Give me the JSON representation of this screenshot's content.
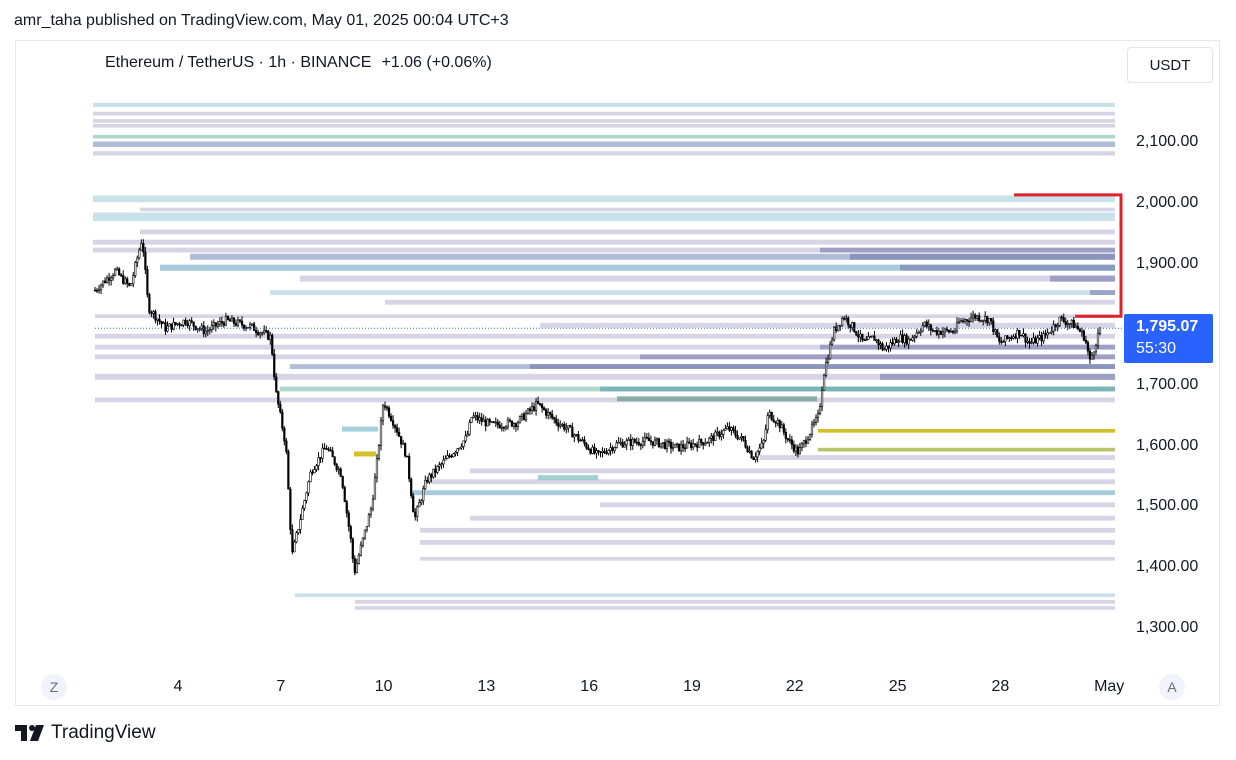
{
  "header": {
    "published": "amr_taha published on TradingView.com, May 01, 2025 00:04 UTC+3",
    "symbol": "Ethereum / TetherUS · 1h · BINANCE",
    "change": "+1.06 (+0.06%)"
  },
  "currency_button": "USDT",
  "price_label": {
    "price": "1,795.07",
    "countdown": "55:30"
  },
  "left_button": "Z",
  "right_button": "A",
  "footer": {
    "brand": "TradingView"
  },
  "colors": {
    "candle": "#000000",
    "current_price_box": "#2962ff",
    "annotation_red": "#e0202a",
    "zone_yellow": "#d4c02a",
    "zone_olive": "#b9c46a",
    "zone_blue": "#4d88b8",
    "zone_lavender": "#8f8db8",
    "zone_teal": "#6fb6a6"
  },
  "icons": {
    "footer_logo": "tradingview-logo-icon"
  },
  "chart_data": {
    "type": "candlestick",
    "title": "Ethereum / TetherUS · 1h · BINANCE",
    "ylim": [
      1280,
      2180
    ],
    "y_ticks": [
      "2,100.00",
      "2,000.00",
      "1,900.00",
      "1,700.00",
      "1,600.00",
      "1,500.00",
      "1,400.00",
      "1,300.00"
    ],
    "x_tick_labels": [
      "4",
      "7",
      "10",
      "13",
      "16",
      "19",
      "22",
      "25",
      "28",
      "May"
    ],
    "current_price": 1795.07,
    "close_path": [
      [
        0,
        1858
      ],
      [
        0.02,
        1890
      ],
      [
        0.035,
        1862
      ],
      [
        0.047,
        1945
      ],
      [
        0.053,
        1830
      ],
      [
        0.07,
        1795
      ],
      [
        0.09,
        1808
      ],
      [
        0.11,
        1790
      ],
      [
        0.13,
        1808
      ],
      [
        0.155,
        1798
      ],
      [
        0.175,
        1780
      ],
      [
        0.18,
        1690
      ],
      [
        0.19,
        1600
      ],
      [
        0.196,
        1420
      ],
      [
        0.215,
        1560
      ],
      [
        0.23,
        1600
      ],
      [
        0.245,
        1555
      ],
      [
        0.255,
        1440
      ],
      [
        0.258,
        1392
      ],
      [
        0.275,
        1500
      ],
      [
        0.28,
        1565
      ],
      [
        0.287,
        1675
      ],
      [
        0.3,
        1630
      ],
      [
        0.31,
        1585
      ],
      [
        0.318,
        1480
      ],
      [
        0.33,
        1545
      ],
      [
        0.35,
        1580
      ],
      [
        0.37,
        1615
      ],
      [
        0.375,
        1650
      ],
      [
        0.395,
        1635
      ],
      [
        0.42,
        1640
      ],
      [
        0.44,
        1670
      ],
      [
        0.46,
        1640
      ],
      [
        0.47,
        1630
      ],
      [
        0.49,
        1600
      ],
      [
        0.5,
        1585
      ],
      [
        0.52,
        1605
      ],
      [
        0.55,
        1610
      ],
      [
        0.58,
        1598
      ],
      [
        0.61,
        1610
      ],
      [
        0.63,
        1630
      ],
      [
        0.645,
        1610
      ],
      [
        0.655,
        1582
      ],
      [
        0.665,
        1605
      ],
      [
        0.67,
        1655
      ],
      [
        0.68,
        1640
      ],
      [
        0.69,
        1610
      ],
      [
        0.7,
        1590
      ],
      [
        0.71,
        1620
      ],
      [
        0.72,
        1650
      ],
      [
        0.725,
        1720
      ],
      [
        0.735,
        1790
      ],
      [
        0.745,
        1815
      ],
      [
        0.755,
        1795
      ],
      [
        0.765,
        1770
      ],
      [
        0.775,
        1780
      ],
      [
        0.785,
        1760
      ],
      [
        0.8,
        1780
      ],
      [
        0.81,
        1775
      ],
      [
        0.825,
        1802
      ],
      [
        0.835,
        1790
      ],
      [
        0.855,
        1790
      ],
      [
        0.86,
        1805
      ],
      [
        0.875,
        1815
      ],
      [
        0.89,
        1810
      ],
      [
        0.9,
        1770
      ],
      [
        0.92,
        1790
      ],
      [
        0.93,
        1770
      ],
      [
        0.945,
        1782
      ],
      [
        0.96,
        1810
      ],
      [
        0.975,
        1800
      ],
      [
        0.985,
        1780
      ],
      [
        0.99,
        1740
      ],
      [
        1,
        1795
      ]
    ],
    "zones": [
      [
        2153,
        2160,
        1
      ],
      [
        2140,
        2146,
        2
      ],
      [
        2128,
        2134,
        2
      ],
      [
        2120,
        2126,
        2
      ],
      [
        2102,
        2108,
        3
      ],
      [
        2085,
        2094,
        4
      ],
      [
        2073,
        2080,
        2
      ],
      [
        1992,
        2003,
        1
      ],
      [
        1982,
        1988,
        2
      ],
      [
        1958,
        1972,
        1
      ],
      [
        1942,
        1950,
        2
      ],
      [
        1925,
        1933,
        2
      ],
      [
        1912,
        1920,
        2
      ],
      [
        1898,
        1908,
        4
      ],
      [
        1880,
        1890,
        5
      ],
      [
        1862,
        1872,
        2
      ],
      [
        1842,
        1850,
        1
      ],
      [
        1826,
        1834,
        2
      ],
      [
        1806,
        1812,
        2
      ],
      [
        1788,
        1796,
        2
      ],
      [
        1770,
        1778,
        2
      ],
      [
        1752,
        1760,
        2
      ],
      [
        1736,
        1744,
        2
      ],
      [
        1720,
        1728,
        4
      ],
      [
        1700,
        1710,
        2
      ],
      [
        1683,
        1691,
        3
      ],
      [
        1665,
        1673,
        2
      ],
      [
        1617,
        1623,
        6
      ],
      [
        1586,
        1592,
        7
      ],
      [
        1570,
        1578,
        2
      ],
      [
        1548,
        1556,
        2
      ],
      [
        1530,
        1538,
        2
      ],
      [
        1512,
        1520,
        5
      ],
      [
        1492,
        1500,
        2
      ],
      [
        1470,
        1478,
        2
      ],
      [
        1450,
        1458,
        2
      ],
      [
        1430,
        1438,
        2
      ],
      [
        1406,
        1412,
        2
      ],
      [
        1346,
        1352,
        1
      ],
      [
        1335,
        1341,
        2
      ],
      [
        1325,
        1331,
        2
      ]
    ],
    "annotation": {
      "type": "bracket",
      "color": "red",
      "from": 2015,
      "to": 1815
    }
  }
}
